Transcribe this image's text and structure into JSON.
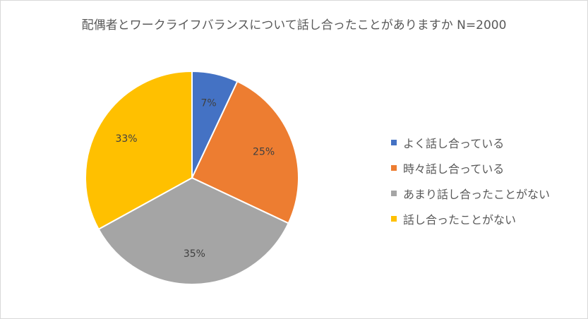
{
  "chart_data": {
    "type": "pie",
    "title": "配偶者とワークライフバランスについて話し合ったことがありますか N=2000",
    "categories": [
      "よく話し合っている",
      "時々話し合っている",
      "あまり話し合ったことがない",
      "話し合ったことがない"
    ],
    "values": [
      7,
      25,
      35,
      33
    ],
    "data_labels": [
      "7%",
      "25%",
      "35%",
      "33%"
    ],
    "colors": [
      "#4472C4",
      "#ED7D31",
      "#A5A5A5",
      "#FFC000"
    ],
    "legend_position": "right"
  }
}
